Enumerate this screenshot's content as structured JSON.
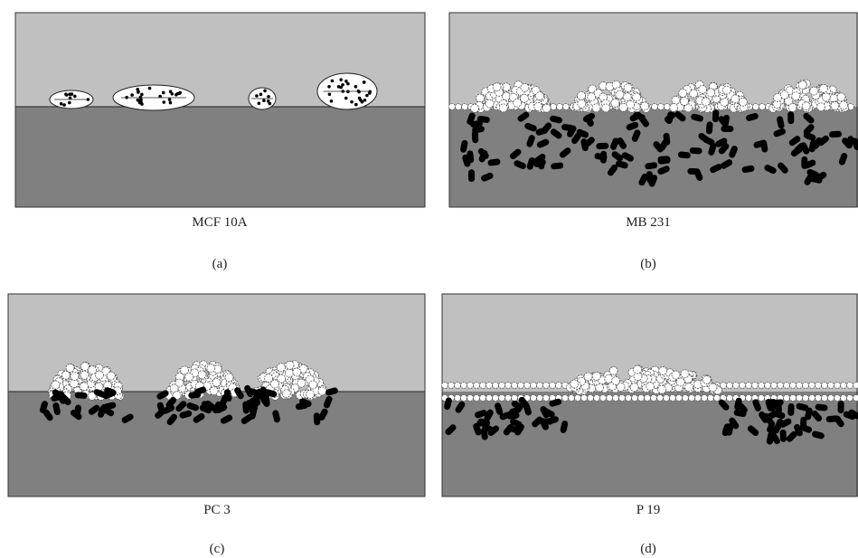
{
  "panels": [
    {
      "caption": "MCF 10A",
      "label": "(a)"
    },
    {
      "caption": "MB 231",
      "label": "(b)"
    },
    {
      "caption": "PC 3",
      "label": "(c)"
    },
    {
      "caption": "P 19",
      "label": "(d)"
    }
  ]
}
